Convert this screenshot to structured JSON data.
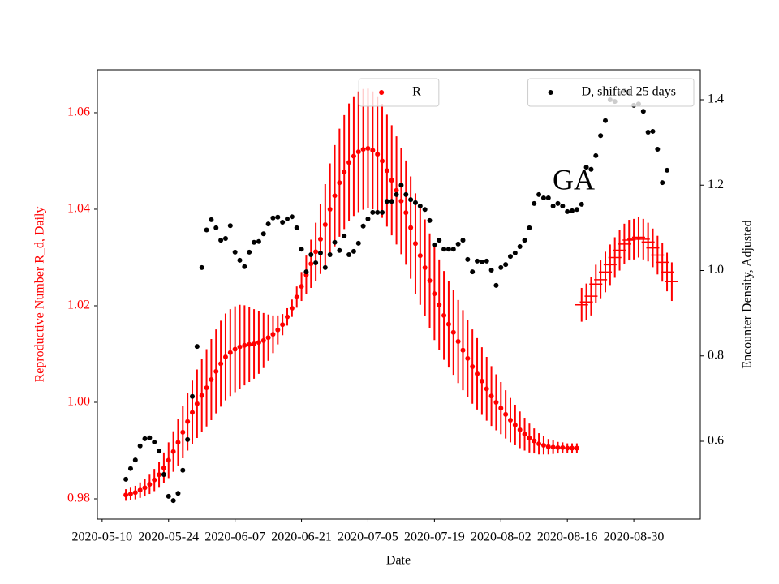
{
  "chart_data": {
    "type": "scatter",
    "annotation": "GA",
    "xlabel": "Date",
    "ylabel": "Reproductive Number R_d, Daily",
    "y2label": "Encounter Density, Adjusted",
    "xlim": [
      "2020-05-09",
      "2020-09-13"
    ],
    "xticks": [
      "2020-05-10",
      "2020-05-24",
      "2020-06-07",
      "2020-06-21",
      "2020-07-05",
      "2020-07-19",
      "2020-08-02",
      "2020-08-16",
      "2020-08-30"
    ],
    "ylim": [
      0.9758,
      1.0689
    ],
    "yticks": [
      0.98,
      {
        "value": 1,
        "label": "1.00"
      },
      1.02,
      1.04,
      1.06
    ],
    "y2lim": [
      0.4176,
      1.4703
    ],
    "y2ticks": [
      0.6,
      0.8,
      {
        "value": 1,
        "label": "1.0"
      },
      1.2,
      1.4
    ],
    "series": [
      {
        "name": "R",
        "color": "#ff0000",
        "marker": "o",
        "legend": "upper center",
        "x": [
          "2020-05-15",
          "2020-05-16",
          "2020-05-17",
          "2020-05-18",
          "2020-05-19",
          "2020-05-20",
          "2020-05-21",
          "2020-05-22",
          "2020-05-23",
          "2020-05-24",
          "2020-05-25",
          "2020-05-26",
          "2020-05-27",
          "2020-05-28",
          "2020-05-29",
          "2020-05-30",
          "2020-05-31",
          "2020-06-01",
          "2020-06-02",
          "2020-06-03",
          "2020-06-04",
          "2020-06-05",
          "2020-06-06",
          "2020-06-07",
          "2020-06-08",
          "2020-06-09",
          "2020-06-10",
          "2020-06-11",
          "2020-06-12",
          "2020-06-13",
          "2020-06-14",
          "2020-06-15",
          "2020-06-16",
          "2020-06-17",
          "2020-06-18",
          "2020-06-19",
          "2020-06-20",
          "2020-06-21",
          "2020-06-22",
          "2020-06-23",
          "2020-06-24",
          "2020-06-25",
          "2020-06-26",
          "2020-06-27",
          "2020-06-28",
          "2020-06-29",
          "2020-06-30",
          "2020-07-01",
          "2020-07-02",
          "2020-07-03",
          "2020-07-04",
          "2020-07-05",
          "2020-07-06",
          "2020-07-07",
          "2020-07-08",
          "2020-07-09",
          "2020-07-10",
          "2020-07-11",
          "2020-07-12",
          "2020-07-13",
          "2020-07-14",
          "2020-07-15",
          "2020-07-16",
          "2020-07-17",
          "2020-07-18",
          "2020-07-19",
          "2020-07-20",
          "2020-07-21",
          "2020-07-22",
          "2020-07-23",
          "2020-07-24",
          "2020-07-25",
          "2020-07-26",
          "2020-07-27",
          "2020-07-28",
          "2020-07-29",
          "2020-07-30",
          "2020-07-31",
          "2020-08-01",
          "2020-08-02",
          "2020-08-03",
          "2020-08-04",
          "2020-08-05",
          "2020-08-06",
          "2020-08-07",
          "2020-08-08",
          "2020-08-09",
          "2020-08-10",
          "2020-08-11",
          "2020-08-12",
          "2020-08-13",
          "2020-08-14",
          "2020-08-15",
          "2020-08-16",
          "2020-08-17",
          "2020-08-18"
        ],
        "values": [
          0.9808,
          0.981,
          0.9813,
          0.9818,
          0.9823,
          0.983,
          0.9839,
          0.985,
          0.9864,
          0.988,
          0.9898,
          0.9917,
          0.9938,
          0.996,
          0.9979,
          0.9997,
          1.0014,
          1.003,
          1.0047,
          1.0064,
          1.008,
          1.0094,
          1.0103,
          1.011,
          1.0115,
          1.0118,
          1.012,
          1.0121,
          1.0124,
          1.0128,
          1.0134,
          1.0141,
          1.015,
          1.0161,
          1.0177,
          1.0195,
          1.0218,
          1.024,
          1.0264,
          1.0287,
          1.0312,
          1.0338,
          1.0368,
          1.04,
          1.0428,
          1.0455,
          1.0477,
          1.0497,
          1.051,
          1.0519,
          1.0524,
          1.0526,
          1.0522,
          1.0514,
          1.05,
          1.048,
          1.046,
          1.0439,
          1.0417,
          1.0393,
          1.0362,
          1.0329,
          1.0304,
          1.0279,
          1.0252,
          1.0225,
          1.0202,
          1.018,
          1.0162,
          1.0145,
          1.0126,
          1.0108,
          1.0091,
          1.0074,
          1.0059,
          1.0044,
          1.0028,
          1.0013,
          1.0,
          0.9988,
          0.9975,
          0.9963,
          0.9953,
          0.9943,
          0.9934,
          0.9926,
          0.992,
          0.9914,
          0.9911,
          0.9908,
          0.9907,
          0.9906,
          0.9906,
          0.9905,
          0.9905,
          0.9905
        ],
        "errors": [
          0.0012,
          0.0013,
          0.0014,
          0.0016,
          0.0018,
          0.002,
          0.0023,
          0.0027,
          0.0032,
          0.0037,
          0.0042,
          0.0048,
          0.0054,
          0.006,
          0.0066,
          0.0071,
          0.0076,
          0.008,
          0.0084,
          0.0087,
          0.0089,
          0.009,
          0.009,
          0.0089,
          0.0087,
          0.0083,
          0.0078,
          0.0072,
          0.0065,
          0.0057,
          0.0048,
          0.0039,
          0.003,
          0.0022,
          0.0018,
          0.0018,
          0.0022,
          0.003,
          0.004,
          0.005,
          0.006,
          0.0072,
          0.0084,
          0.0095,
          0.0105,
          0.0112,
          0.0118,
          0.0122,
          0.0124,
          0.0125,
          0.0125,
          0.0124,
          0.0122,
          0.012,
          0.0118,
          0.0116,
          0.0114,
          0.0112,
          0.011,
          0.0108,
          0.0106,
          0.0104,
          0.0102,
          0.01,
          0.0098,
          0.0096,
          0.0094,
          0.0092,
          0.009,
          0.0088,
          0.0086,
          0.0083,
          0.008,
          0.0077,
          0.0074,
          0.007,
          0.0066,
          0.0062,
          0.0058,
          0.0054,
          0.005,
          0.0046,
          0.0042,
          0.0038,
          0.0034,
          0.003,
          0.0026,
          0.0022,
          0.0019,
          0.0016,
          0.0014,
          0.0012,
          0.0011,
          0.001,
          0.001,
          0.001
        ]
      },
      {
        "color": "#ff0000",
        "marker": "+",
        "x": [
          "2020-08-19",
          "2020-08-20",
          "2020-08-21",
          "2020-08-22",
          "2020-08-23",
          "2020-08-24",
          "2020-08-25",
          "2020-08-26",
          "2020-08-27",
          "2020-08-28",
          "2020-08-29",
          "2020-08-30",
          "2020-08-31",
          "2020-09-01",
          "2020-09-02",
          "2020-09-03",
          "2020-09-04",
          "2020-09-05",
          "2020-09-06",
          "2020-09-07"
        ],
        "values": [
          1.0202,
          1.0208,
          1.022,
          1.0245,
          1.0254,
          1.027,
          1.0285,
          1.03,
          1.0315,
          1.0328,
          1.0336,
          1.0338,
          1.0342,
          1.0338,
          1.0332,
          1.032,
          1.0305,
          1.029,
          1.027,
          1.025
        ],
        "errors": [
          0.0035,
          0.0038,
          0.004,
          0.004,
          0.004,
          0.0042,
          0.0042,
          0.0042,
          0.0042,
          0.0042,
          0.0042,
          0.0042,
          0.0042,
          0.0042,
          0.004,
          0.004,
          0.004,
          0.004,
          0.004,
          0.004
        ]
      },
      {
        "name": "D, shifted 25 days",
        "color": "#000000",
        "marker": "o",
        "axis": "y2",
        "legend": "upper right",
        "x": [
          "2020-05-15",
          "2020-05-16",
          "2020-05-17",
          "2020-05-18",
          "2020-05-19",
          "2020-05-20",
          "2020-05-21",
          "2020-05-22",
          "2020-05-23",
          "2020-05-24",
          "2020-05-25",
          "2020-05-26",
          "2020-05-27",
          "2020-05-28",
          "2020-05-29",
          "2020-05-30",
          "2020-05-31",
          "2020-06-01",
          "2020-06-02",
          "2020-06-03",
          "2020-06-04",
          "2020-06-05",
          "2020-06-06",
          "2020-06-07",
          "2020-06-08",
          "2020-06-09",
          "2020-06-10",
          "2020-06-11",
          "2020-06-12",
          "2020-06-13",
          "2020-06-14",
          "2020-06-15",
          "2020-06-16",
          "2020-06-17",
          "2020-06-18",
          "2020-06-19",
          "2020-06-20",
          "2020-06-21",
          "2020-06-22",
          "2020-06-23",
          "2020-06-24",
          "2020-06-25",
          "2020-06-26",
          "2020-06-27",
          "2020-06-28",
          "2020-06-29",
          "2020-06-30",
          "2020-07-01",
          "2020-07-02",
          "2020-07-03",
          "2020-07-04",
          "2020-07-05",
          "2020-07-06",
          "2020-07-07",
          "2020-07-08",
          "2020-07-09",
          "2020-07-10",
          "2020-07-11",
          "2020-07-12",
          "2020-07-13",
          "2020-07-14",
          "2020-07-15",
          "2020-07-16",
          "2020-07-17",
          "2020-07-18",
          "2020-07-19",
          "2020-07-20",
          "2020-07-21",
          "2020-07-22",
          "2020-07-23",
          "2020-07-24",
          "2020-07-25",
          "2020-07-26",
          "2020-07-27",
          "2020-07-28",
          "2020-07-29",
          "2020-07-30",
          "2020-07-31",
          "2020-08-01",
          "2020-08-02",
          "2020-08-03",
          "2020-08-04",
          "2020-08-05",
          "2020-08-06",
          "2020-08-07",
          "2020-08-08",
          "2020-08-09",
          "2020-08-10",
          "2020-08-11",
          "2020-08-12",
          "2020-08-13",
          "2020-08-14",
          "2020-08-15",
          "2020-08-16",
          "2020-08-17",
          "2020-08-18",
          "2020-08-19",
          "2020-08-20",
          "2020-08-21",
          "2020-08-22",
          "2020-08-23",
          "2020-08-24",
          "2020-08-25",
          "2020-08-26",
          "2020-08-27",
          "2020-08-28",
          "2020-08-29",
          "2020-08-30",
          "2020-08-31",
          "2020-09-01",
          "2020-09-02",
          "2020-09-03",
          "2020-09-04",
          "2020-09-05",
          "2020-09-06"
        ],
        "values": [
          0.511,
          0.536,
          0.556,
          0.589,
          0.606,
          0.608,
          0.598,
          0.577,
          0.522,
          0.471,
          0.461,
          0.478,
          0.532,
          0.604,
          0.705,
          0.822,
          1.007,
          1.095,
          1.119,
          1.1,
          1.071,
          1.075,
          1.105,
          1.043,
          1.024,
          1.009,
          1.043,
          1.066,
          1.068,
          1.086,
          1.109,
          1.123,
          1.125,
          1.113,
          1.121,
          1.126,
          1.1,
          1.05,
          0.997,
          1.037,
          1.018,
          1.041,
          1.007,
          1.037,
          1.066,
          1.047,
          1.081,
          1.037,
          1.045,
          1.064,
          1.104,
          1.121,
          1.136,
          1.136,
          1.136,
          1.162,
          1.162,
          1.178,
          1.2,
          1.178,
          1.166,
          1.159,
          1.151,
          1.143,
          1.117,
          1.06,
          1.071,
          1.05,
          1.05,
          1.05,
          1.062,
          1.071,
          1.026,
          0.997,
          1.022,
          1.02,
          1.022,
          1.001,
          0.965,
          1.007,
          1.014,
          1.033,
          1.041,
          1.056,
          1.071,
          1.1,
          1.157,
          1.178,
          1.17,
          1.17,
          1.151,
          1.157,
          1.151,
          1.138,
          1.14,
          1.143,
          1.155,
          1.242,
          1.237,
          1.269,
          1.316,
          1.351,
          1.4,
          1.396,
          1.415,
          1.421,
          1.417,
          1.387,
          1.39,
          1.373,
          1.324,
          1.326,
          1.284,
          1.206,
          1.235
        ]
      }
    ]
  }
}
